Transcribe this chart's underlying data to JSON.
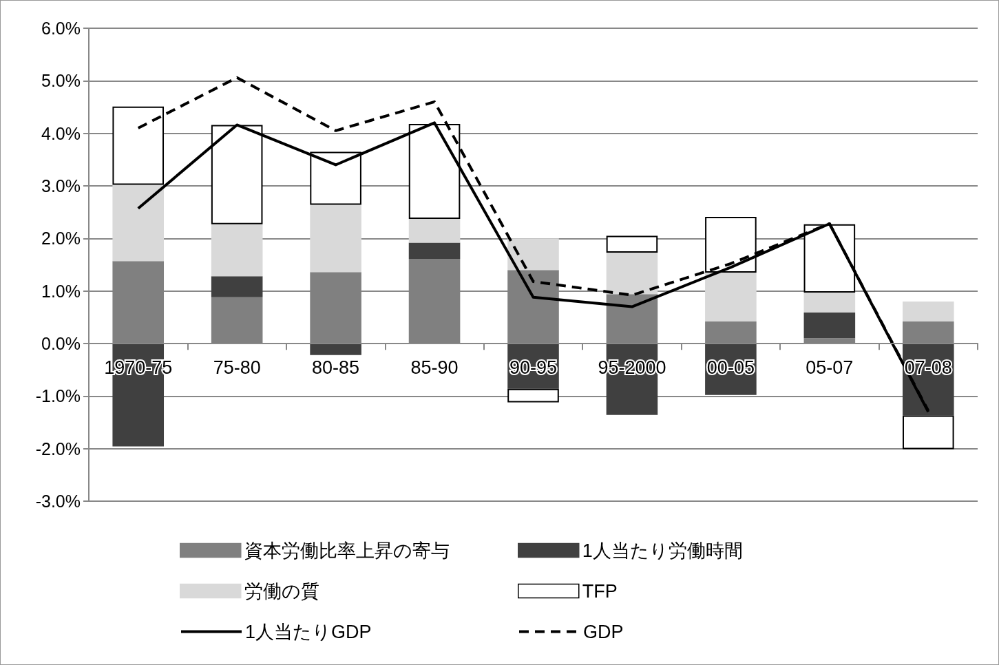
{
  "chart_data": {
    "type": "bar",
    "stacked": true,
    "categories": [
      "1970-75",
      "75-80",
      "80-85",
      "85-90",
      "90-95",
      "95-2000",
      "00-05",
      "05-07",
      "07-08"
    ],
    "series": [
      {
        "name": "資本労働比率上昇の寄与",
        "color": "#808080",
        "values": [
          1.57,
          0.88,
          1.36,
          1.61,
          1.4,
          0.94,
          0.42,
          0.1,
          0.42
        ]
      },
      {
        "name": "1人当たり労働時間",
        "color": "#404040",
        "values": [
          -1.96,
          0.4,
          -0.22,
          0.31,
          -0.86,
          -1.36,
          -0.98,
          0.49,
          -1.37
        ]
      },
      {
        "name": "労働の質",
        "color": "#d9d9d9",
        "values": [
          1.45,
          0.99,
          1.28,
          0.45,
          0.6,
          0.79,
          0.93,
          0.38,
          0.38
        ]
      },
      {
        "name": "TFP",
        "color": "#ffffff",
        "values": [
          1.49,
          1.89,
          1.01,
          1.81,
          -0.26,
          0.32,
          1.06,
          1.3,
          -0.64
        ]
      },
      {
        "name": "1人当たりGDP",
        "type": "line",
        "color": "#000000",
        "line_style": "solid",
        "values": [
          2.57,
          4.16,
          3.4,
          4.2,
          0.88,
          0.7,
          1.45,
          2.28,
          -1.3
        ]
      },
      {
        "name": "GDP",
        "type": "line",
        "color": "#000000",
        "line_style": "dashed",
        "values": [
          4.1,
          5.06,
          4.05,
          4.6,
          1.18,
          0.92,
          1.52,
          2.28,
          -1.28
        ]
      }
    ],
    "ylim": [
      -3,
      6
    ],
    "yticks": [
      {
        "value": -3,
        "label": "-3.0%"
      },
      {
        "value": -2,
        "label": "-2.0%"
      },
      {
        "value": -1,
        "label": "-1.0%"
      },
      {
        "value": 0,
        "label": "0.0%"
      },
      {
        "value": 1,
        "label": "1.0%"
      },
      {
        "value": 2,
        "label": "2.0%"
      },
      {
        "value": 3,
        "label": "3.0%"
      },
      {
        "value": 4,
        "label": "4.0%"
      },
      {
        "value": 5,
        "label": "5.0%"
      },
      {
        "value": 6,
        "label": "6.0%"
      }
    ],
    "grid": "y",
    "legend": "bottom",
    "marker": "none"
  }
}
